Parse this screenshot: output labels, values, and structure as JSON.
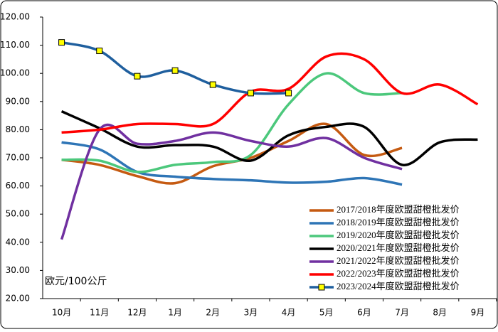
{
  "chart_data": {
    "type": "line",
    "y_label": "欧元/100公斤",
    "categories": [
      "10月",
      "11月",
      "12月",
      "1月",
      "2月",
      "3月",
      "4月",
      "5月",
      "6月",
      "7月",
      "8月",
      "9月"
    ],
    "ylim": [
      20,
      120
    ],
    "yticks": [
      {
        "value": 20,
        "label": "20.00"
      },
      {
        "value": 30,
        "label": "30.00"
      },
      {
        "value": 40,
        "label": "40.00"
      },
      {
        "value": 50,
        "label": "50.00"
      },
      {
        "value": 60,
        "label": "60.00"
      },
      {
        "value": 70,
        "label": "70.00"
      },
      {
        "value": 80,
        "label": "80.00"
      },
      {
        "value": 90,
        "label": "90.00"
      },
      {
        "value": 100,
        "label": "100.00"
      },
      {
        "value": 110,
        "label": "110.00"
      },
      {
        "value": 120,
        "label": "120.00"
      }
    ],
    "legend": "lower right",
    "smooth": true,
    "series": [
      {
        "name": "2017/2018年度欧盟甜橙批发价",
        "color": "#c55a11",
        "values": [
          69.3,
          67.5,
          63.5,
          61,
          67,
          70,
          76,
          82,
          71,
          73.5,
          null,
          null
        ]
      },
      {
        "name": "2018/2019年度欧盟甜橙批发价",
        "color": "#2e75b6",
        "values": [
          75.5,
          73,
          65,
          63.3,
          62.5,
          62,
          61.2,
          61.5,
          62.8,
          60.5,
          null,
          null
        ]
      },
      {
        "name": "2019/2020年度欧盟甜橙批发价",
        "color": "#4cc87c",
        "values": [
          69.3,
          69,
          65,
          67.5,
          68.5,
          71,
          89,
          100,
          93,
          93,
          null,
          null
        ]
      },
      {
        "name": "2020/2021年度欧盟甜橙批发价",
        "color": "#000000",
        "values": [
          86.5,
          80.5,
          74,
          74.5,
          74,
          69,
          78,
          81,
          81,
          67.5,
          75.5,
          76.5
        ]
      },
      {
        "name": "2021/2022年度欧盟甜橙批发价",
        "color": "#7030a0",
        "values": [
          41,
          80,
          75,
          76,
          79,
          76,
          74,
          77,
          70,
          66,
          null,
          null
        ]
      },
      {
        "name": "2022/2023年度欧盟甜橙批发价",
        "color": "#ff0000",
        "values": [
          79,
          80,
          82,
          82,
          82,
          93.5,
          94.5,
          106,
          105,
          93,
          96,
          89
        ]
      },
      {
        "name": "2023/2024年度欧盟甜橙批发价",
        "color": "#1f5f9e",
        "marker": "square",
        "marker_color": "#ffff00",
        "values": [
          111,
          108,
          99,
          101,
          96,
          93,
          93,
          null,
          null,
          null,
          null,
          null
        ]
      }
    ]
  }
}
